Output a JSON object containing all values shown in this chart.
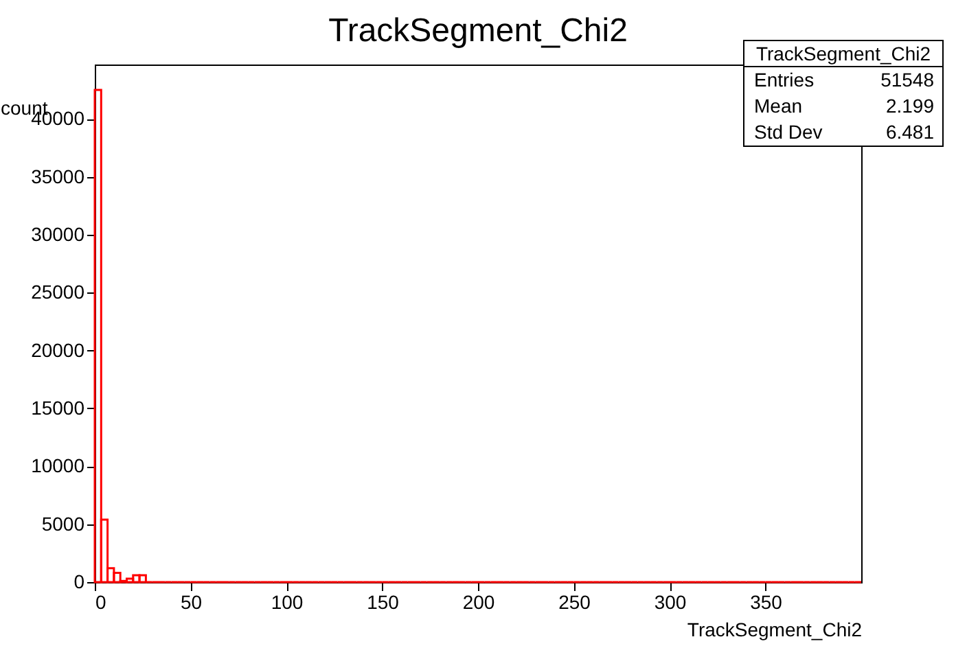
{
  "chart_data": {
    "type": "histogram",
    "title": "TrackSegment_Chi2",
    "xlabel": "TrackSegment_Chi2",
    "ylabel": "count",
    "annotations": [
      "TrackSegment_Chi2",
      "Entries 51548",
      "Mean 2.199",
      "Std Dev 6.481"
    ],
    "bins": [
      0,
      3.33,
      6.67,
      10,
      13.33,
      16.67,
      20,
      23.33,
      26.67,
      30,
      33.33,
      36.67,
      40,
      43.33,
      46.67,
      50,
      53.33,
      56.67,
      60,
      63.33,
      66.67,
      70,
      73.33,
      76.67,
      80,
      83.33,
      86.67,
      90,
      93.33,
      96.67,
      100,
      103.33,
      106.67,
      110,
      113.33,
      116.67,
      120,
      123.33,
      126.67,
      130,
      133.33,
      136.67,
      140,
      143.33,
      146.67,
      150,
      153.33,
      156.67,
      160,
      163.33,
      166.67,
      170,
      173.33,
      176.67,
      180,
      183.33,
      186.67,
      190,
      193.33,
      196.67,
      200,
      203.33,
      206.67,
      210,
      213.33,
      216.67,
      220,
      223.33,
      226.67,
      230,
      233.33,
      236.67,
      240,
      243.33,
      246.67,
      250,
      253.33,
      256.67,
      260,
      263.33,
      266.67,
      270,
      273.33,
      276.67,
      280,
      283.33,
      286.67,
      290,
      293.33,
      296.67,
      300,
      303.33,
      306.67,
      310,
      313.33,
      316.67,
      320,
      323.33,
      326.67,
      330,
      333.33,
      336.67,
      340,
      343.33,
      346.67,
      350,
      353.33,
      356.67,
      360,
      363.33,
      366.67,
      370,
      373.33,
      376.67,
      380,
      383.33,
      386.67,
      390,
      393.33,
      396.67,
      400
    ],
    "values": [
      42500,
      5400,
      1200,
      800,
      100,
      300,
      600,
      600,
      0,
      0,
      0,
      0,
      0,
      0,
      0,
      0,
      0,
      0,
      0,
      0,
      0,
      0,
      0,
      0,
      0,
      0,
      0,
      0,
      0,
      0,
      0,
      0,
      0,
      0,
      0,
      0,
      0,
      0,
      0,
      0,
      0,
      0,
      0,
      0,
      0,
      0,
      0,
      0,
      0,
      0,
      0,
      0,
      0,
      0,
      0,
      0,
      0,
      0,
      0,
      0,
      0,
      0,
      0,
      0,
      0,
      0,
      0,
      0,
      0,
      0,
      0,
      0,
      0,
      0,
      0,
      0,
      0,
      0,
      0,
      0,
      0,
      0,
      0,
      0,
      0,
      0,
      0,
      0,
      0,
      0,
      0,
      0,
      0,
      0,
      0,
      0,
      0,
      0,
      0,
      0,
      0,
      0,
      0,
      0,
      0,
      0,
      0,
      0,
      0,
      0,
      0,
      0,
      0,
      0,
      0,
      0,
      0,
      0,
      0,
      0
    ],
    "color": "#ff0000",
    "xlim": [
      0,
      400
    ],
    "xticks": [
      0,
      50,
      100,
      150,
      200,
      250,
      300,
      350
    ],
    "ylim": [
      0,
      44700
    ],
    "yticks": [
      0,
      5000,
      10000,
      15000,
      20000,
      25000,
      30000,
      35000,
      40000
    ]
  }
}
